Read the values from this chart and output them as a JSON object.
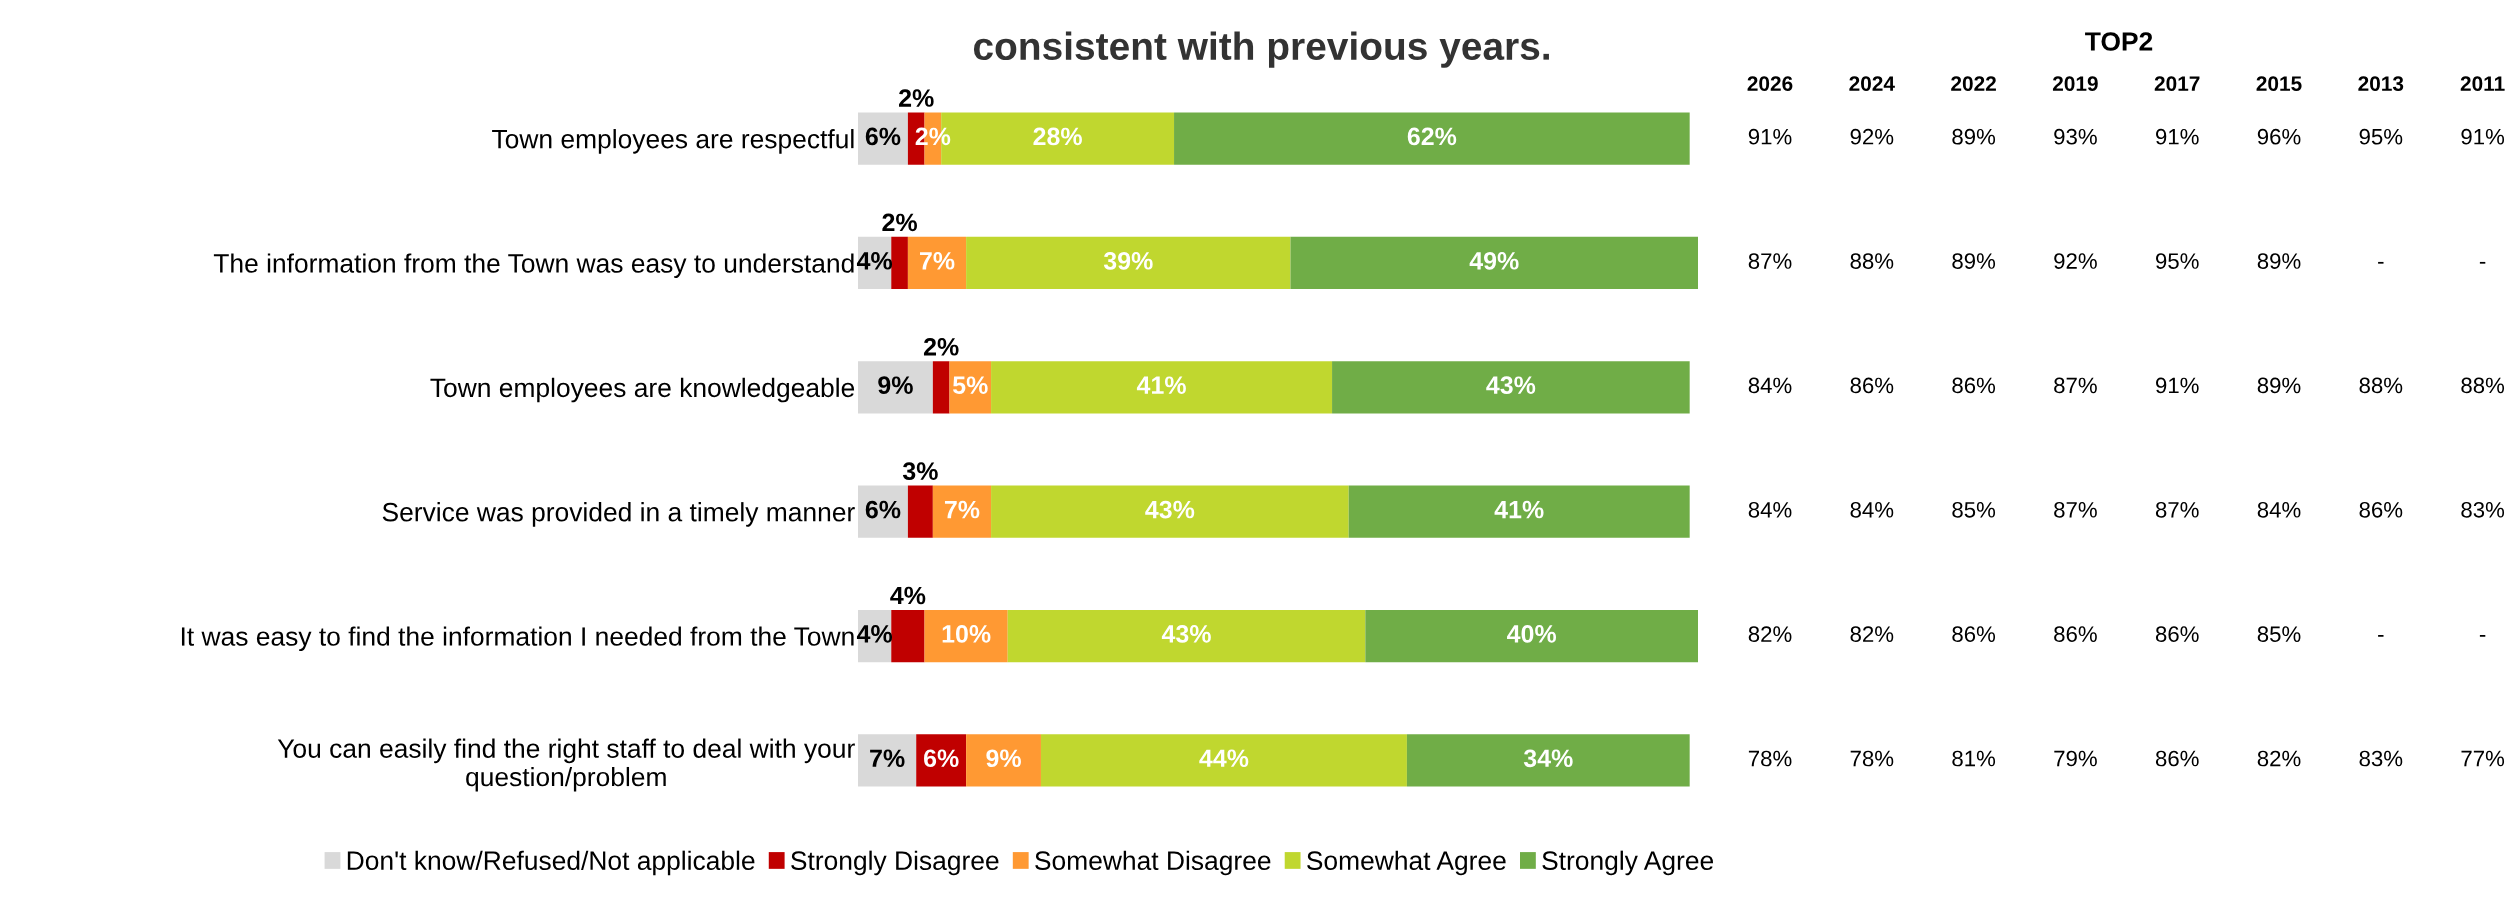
{
  "chart_data": {
    "type": "bar",
    "orientation": "horizontal",
    "stacked": true,
    "title": "consistent with previous years.",
    "categories": [
      "Town employees are respectful",
      "The information from the Town was easy to understand",
      "Town employees are knowledgeable",
      "Service was provided in a timely manner",
      "It was easy to find the information I needed from the Town",
      "You can easily find the right staff to deal with your\nquestion/problem"
    ],
    "series": [
      {
        "name": "Don't know/Refused/Not applicable",
        "color": "#d9d9d9",
        "values": [
          6,
          4,
          9,
          6,
          4,
          7
        ],
        "value_labels": [
          "6%",
          "4%",
          "9%",
          "6%",
          "4%",
          "7%"
        ]
      },
      {
        "name": "Strongly Disagree",
        "color": "#c00000",
        "values": [
          2,
          2,
          2,
          3,
          4,
          6
        ],
        "value_labels": [
          "2%",
          "2%",
          "2%",
          "3%",
          "4%",
          "6%"
        ]
      },
      {
        "name": "Somewhat Disagree",
        "color": "#ff9933",
        "values": [
          2,
          7,
          5,
          7,
          10,
          9
        ],
        "value_labels": [
          "2%",
          "7%",
          "5%",
          "7%",
          "10%",
          "9%"
        ]
      },
      {
        "name": "Somewhat Agree",
        "color": "#c0d72f",
        "values": [
          28,
          39,
          41,
          43,
          43,
          44
        ],
        "value_labels": [
          "28%",
          "39%",
          "41%",
          "43%",
          "43%",
          "44%"
        ]
      },
      {
        "name": "Strongly Agree",
        "color": "#70ad47",
        "values": [
          62,
          49,
          43,
          41,
          40,
          34
        ],
        "value_labels": [
          "62%",
          "49%",
          "43%",
          "41%",
          "40%",
          "34%"
        ]
      }
    ],
    "legend": "bottom",
    "tick_labels": "y",
    "grid": false,
    "annotations": [
      "TOP2",
      "2026",
      "2024",
      "2022",
      "2019",
      "2017",
      "2015",
      "2013",
      "2011",
      "91%",
      "92%",
      "89%",
      "93%",
      "91%",
      "96%",
      "95%",
      "91%",
      "87%",
      "88%",
      "89%",
      "92%",
      "95%",
      "89%",
      "-",
      "-",
      "84%",
      "86%",
      "86%",
      "87%",
      "91%",
      "89%",
      "88%",
      "88%",
      "84%",
      "84%",
      "85%",
      "87%",
      "87%",
      "84%",
      "86%",
      "83%",
      "82%",
      "82%",
      "86%",
      "86%",
      "86%",
      "85%",
      "-",
      "-",
      "78%",
      "78%",
      "81%",
      "79%",
      "86%",
      "82%",
      "83%",
      "77%"
    ]
  }
}
